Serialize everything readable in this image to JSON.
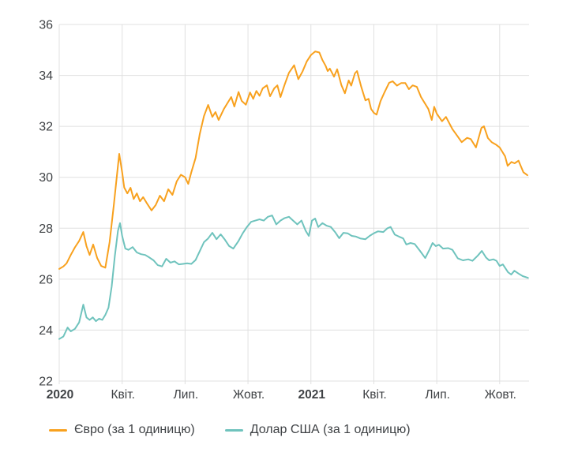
{
  "chart_data": {
    "type": "line",
    "title": "",
    "xlabel": "",
    "ylabel": "",
    "grid": true,
    "legend_position": "bottom-left",
    "axis_text_color": "#3f4245",
    "grid_color": "#e0e0e0",
    "ylim": [
      22,
      36
    ],
    "yticks": [
      22,
      24,
      26,
      28,
      30,
      32,
      34,
      36
    ],
    "xlim_months": [
      0,
      22.4
    ],
    "xticks": [
      {
        "month": 0,
        "label": "2020",
        "bold": true
      },
      {
        "month": 3,
        "label": "Квіт.",
        "bold": false
      },
      {
        "month": 6,
        "label": "Лип.",
        "bold": false
      },
      {
        "month": 9,
        "label": "Жовт.",
        "bold": false
      },
      {
        "month": 12,
        "label": "2021",
        "bold": true
      },
      {
        "month": 15,
        "label": "Квіт.",
        "bold": false
      },
      {
        "month": 18,
        "label": "Лип.",
        "bold": false
      },
      {
        "month": 21,
        "label": "Жовт.",
        "bold": false
      }
    ],
    "series": [
      {
        "name": "Євро (за 1 одиницю)",
        "color": "#F8A11E",
        "points": [
          [
            0.0,
            26.4
          ],
          [
            0.2,
            26.5
          ],
          [
            0.35,
            26.62
          ],
          [
            0.55,
            26.95
          ],
          [
            0.75,
            27.25
          ],
          [
            0.95,
            27.5
          ],
          [
            1.15,
            27.85
          ],
          [
            1.3,
            27.3
          ],
          [
            1.45,
            26.95
          ],
          [
            1.62,
            27.36
          ],
          [
            1.81,
            26.83
          ],
          [
            2.0,
            26.52
          ],
          [
            2.2,
            26.45
          ],
          [
            2.4,
            27.45
          ],
          [
            2.6,
            28.9
          ],
          [
            2.75,
            30.05
          ],
          [
            2.86,
            30.92
          ],
          [
            3.0,
            30.2
          ],
          [
            3.1,
            29.6
          ],
          [
            3.25,
            29.37
          ],
          [
            3.4,
            29.59
          ],
          [
            3.55,
            29.15
          ],
          [
            3.7,
            29.37
          ],
          [
            3.85,
            29.06
          ],
          [
            4.0,
            29.22
          ],
          [
            4.2,
            28.95
          ],
          [
            4.4,
            28.7
          ],
          [
            4.6,
            28.91
          ],
          [
            4.8,
            29.28
          ],
          [
            5.0,
            29.06
          ],
          [
            5.2,
            29.53
          ],
          [
            5.4,
            29.31
          ],
          [
            5.6,
            29.84
          ],
          [
            5.8,
            30.1
          ],
          [
            6.0,
            30.0
          ],
          [
            6.15,
            29.74
          ],
          [
            6.3,
            30.2
          ],
          [
            6.5,
            30.76
          ],
          [
            6.7,
            31.7
          ],
          [
            6.9,
            32.4
          ],
          [
            7.1,
            32.84
          ],
          [
            7.3,
            32.37
          ],
          [
            7.45,
            32.56
          ],
          [
            7.6,
            32.25
          ],
          [
            7.85,
            32.68
          ],
          [
            8.05,
            32.95
          ],
          [
            8.2,
            33.15
          ],
          [
            8.35,
            32.78
          ],
          [
            8.55,
            33.35
          ],
          [
            8.7,
            33.0
          ],
          [
            8.9,
            32.85
          ],
          [
            9.1,
            33.33
          ],
          [
            9.25,
            33.08
          ],
          [
            9.4,
            33.39
          ],
          [
            9.55,
            33.2
          ],
          [
            9.7,
            33.49
          ],
          [
            9.9,
            33.61
          ],
          [
            10.05,
            33.18
          ],
          [
            10.25,
            33.49
          ],
          [
            10.4,
            33.61
          ],
          [
            10.55,
            33.15
          ],
          [
            10.75,
            33.64
          ],
          [
            10.95,
            34.1
          ],
          [
            11.2,
            34.4
          ],
          [
            11.4,
            33.85
          ],
          [
            11.6,
            34.15
          ],
          [
            11.8,
            34.54
          ],
          [
            12.0,
            34.8
          ],
          [
            12.2,
            34.94
          ],
          [
            12.4,
            34.9
          ],
          [
            12.55,
            34.6
          ],
          [
            12.7,
            34.38
          ],
          [
            12.8,
            34.17
          ],
          [
            12.9,
            34.27
          ],
          [
            13.1,
            33.95
          ],
          [
            13.25,
            34.24
          ],
          [
            13.45,
            33.62
          ],
          [
            13.62,
            33.3
          ],
          [
            13.8,
            33.8
          ],
          [
            13.92,
            33.6
          ],
          [
            14.1,
            34.08
          ],
          [
            14.2,
            34.17
          ],
          [
            14.4,
            33.55
          ],
          [
            14.6,
            33.02
          ],
          [
            14.75,
            33.08
          ],
          [
            14.87,
            32.68
          ],
          [
            15.0,
            32.53
          ],
          [
            15.13,
            32.46
          ],
          [
            15.32,
            32.99
          ],
          [
            15.51,
            33.34
          ],
          [
            15.73,
            33.71
          ],
          [
            15.9,
            33.77
          ],
          [
            16.1,
            33.6
          ],
          [
            16.3,
            33.7
          ],
          [
            16.5,
            33.7
          ],
          [
            16.67,
            33.46
          ],
          [
            16.85,
            33.61
          ],
          [
            17.05,
            33.55
          ],
          [
            17.25,
            33.15
          ],
          [
            17.6,
            32.68
          ],
          [
            17.76,
            32.25
          ],
          [
            17.88,
            32.77
          ],
          [
            18.0,
            32.5
          ],
          [
            18.25,
            32.2
          ],
          [
            18.44,
            32.37
          ],
          [
            18.74,
            31.9
          ],
          [
            19.0,
            31.6
          ],
          [
            19.19,
            31.38
          ],
          [
            19.45,
            31.55
          ],
          [
            19.62,
            31.5
          ],
          [
            19.87,
            31.17
          ],
          [
            20.13,
            31.94
          ],
          [
            20.25,
            32.0
          ],
          [
            20.44,
            31.54
          ],
          [
            20.62,
            31.38
          ],
          [
            20.81,
            31.29
          ],
          [
            21.0,
            31.17
          ],
          [
            21.26,
            30.82
          ],
          [
            21.38,
            30.45
          ],
          [
            21.56,
            30.6
          ],
          [
            21.71,
            30.55
          ],
          [
            21.9,
            30.65
          ],
          [
            22.13,
            30.2
          ],
          [
            22.32,
            30.08
          ]
        ]
      },
      {
        "name": "Долар США (за 1 одиницю)",
        "color": "#6FC3BD",
        "points": [
          [
            0.0,
            23.65
          ],
          [
            0.2,
            23.75
          ],
          [
            0.4,
            24.1
          ],
          [
            0.55,
            23.95
          ],
          [
            0.75,
            24.05
          ],
          [
            0.95,
            24.3
          ],
          [
            1.15,
            25.0
          ],
          [
            1.3,
            24.5
          ],
          [
            1.45,
            24.4
          ],
          [
            1.6,
            24.5
          ],
          [
            1.75,
            24.35
          ],
          [
            1.9,
            24.45
          ],
          [
            2.05,
            24.4
          ],
          [
            2.2,
            24.6
          ],
          [
            2.35,
            24.88
          ],
          [
            2.5,
            25.7
          ],
          [
            2.65,
            26.9
          ],
          [
            2.8,
            27.9
          ],
          [
            2.9,
            28.2
          ],
          [
            3.0,
            27.7
          ],
          [
            3.15,
            27.2
          ],
          [
            3.3,
            27.15
          ],
          [
            3.5,
            27.26
          ],
          [
            3.7,
            27.05
          ],
          [
            3.9,
            26.98
          ],
          [
            4.1,
            26.95
          ],
          [
            4.3,
            26.85
          ],
          [
            4.5,
            26.74
          ],
          [
            4.7,
            26.55
          ],
          [
            4.9,
            26.5
          ],
          [
            5.1,
            26.8
          ],
          [
            5.3,
            26.65
          ],
          [
            5.5,
            26.7
          ],
          [
            5.7,
            26.58
          ],
          [
            5.9,
            26.6
          ],
          [
            6.1,
            26.62
          ],
          [
            6.3,
            26.6
          ],
          [
            6.5,
            26.75
          ],
          [
            6.7,
            27.1
          ],
          [
            6.9,
            27.45
          ],
          [
            7.1,
            27.6
          ],
          [
            7.3,
            27.82
          ],
          [
            7.5,
            27.57
          ],
          [
            7.7,
            27.76
          ],
          [
            7.9,
            27.55
          ],
          [
            8.1,
            27.3
          ],
          [
            8.3,
            27.2
          ],
          [
            8.55,
            27.5
          ],
          [
            8.75,
            27.8
          ],
          [
            8.95,
            28.05
          ],
          [
            9.15,
            28.25
          ],
          [
            9.35,
            28.3
          ],
          [
            9.55,
            28.35
          ],
          [
            9.75,
            28.3
          ],
          [
            9.95,
            28.45
          ],
          [
            10.15,
            28.5
          ],
          [
            10.35,
            28.15
          ],
          [
            10.55,
            28.3
          ],
          [
            10.75,
            28.4
          ],
          [
            10.95,
            28.45
          ],
          [
            11.15,
            28.3
          ],
          [
            11.35,
            28.15
          ],
          [
            11.55,
            28.3
          ],
          [
            11.75,
            27.9
          ],
          [
            11.9,
            27.7
          ],
          [
            12.05,
            28.3
          ],
          [
            12.2,
            28.38
          ],
          [
            12.35,
            28.05
          ],
          [
            12.55,
            28.2
          ],
          [
            12.75,
            28.1
          ],
          [
            12.95,
            28.05
          ],
          [
            13.15,
            27.85
          ],
          [
            13.35,
            27.61
          ],
          [
            13.55,
            27.82
          ],
          [
            13.75,
            27.8
          ],
          [
            13.95,
            27.7
          ],
          [
            14.15,
            27.67
          ],
          [
            14.35,
            27.6
          ],
          [
            14.6,
            27.57
          ],
          [
            14.8,
            27.7
          ],
          [
            15.0,
            27.8
          ],
          [
            15.2,
            27.88
          ],
          [
            15.45,
            27.85
          ],
          [
            15.65,
            28.0
          ],
          [
            15.8,
            28.05
          ],
          [
            16.0,
            27.75
          ],
          [
            16.2,
            27.67
          ],
          [
            16.4,
            27.6
          ],
          [
            16.55,
            27.36
          ],
          [
            16.75,
            27.42
          ],
          [
            16.95,
            27.38
          ],
          [
            17.2,
            27.11
          ],
          [
            17.45,
            26.83
          ],
          [
            17.65,
            27.15
          ],
          [
            17.8,
            27.42
          ],
          [
            17.95,
            27.3
          ],
          [
            18.1,
            27.35
          ],
          [
            18.3,
            27.2
          ],
          [
            18.55,
            27.22
          ],
          [
            18.75,
            27.15
          ],
          [
            19.0,
            26.82
          ],
          [
            19.25,
            26.74
          ],
          [
            19.5,
            26.78
          ],
          [
            19.7,
            26.72
          ],
          [
            19.95,
            26.92
          ],
          [
            20.15,
            27.11
          ],
          [
            20.35,
            26.85
          ],
          [
            20.5,
            26.74
          ],
          [
            20.7,
            26.78
          ],
          [
            20.85,
            26.72
          ],
          [
            21.0,
            26.52
          ],
          [
            21.15,
            26.58
          ],
          [
            21.4,
            26.27
          ],
          [
            21.55,
            26.18
          ],
          [
            21.7,
            26.33
          ],
          [
            21.9,
            26.22
          ],
          [
            22.1,
            26.12
          ],
          [
            22.35,
            26.05
          ]
        ]
      }
    ]
  }
}
